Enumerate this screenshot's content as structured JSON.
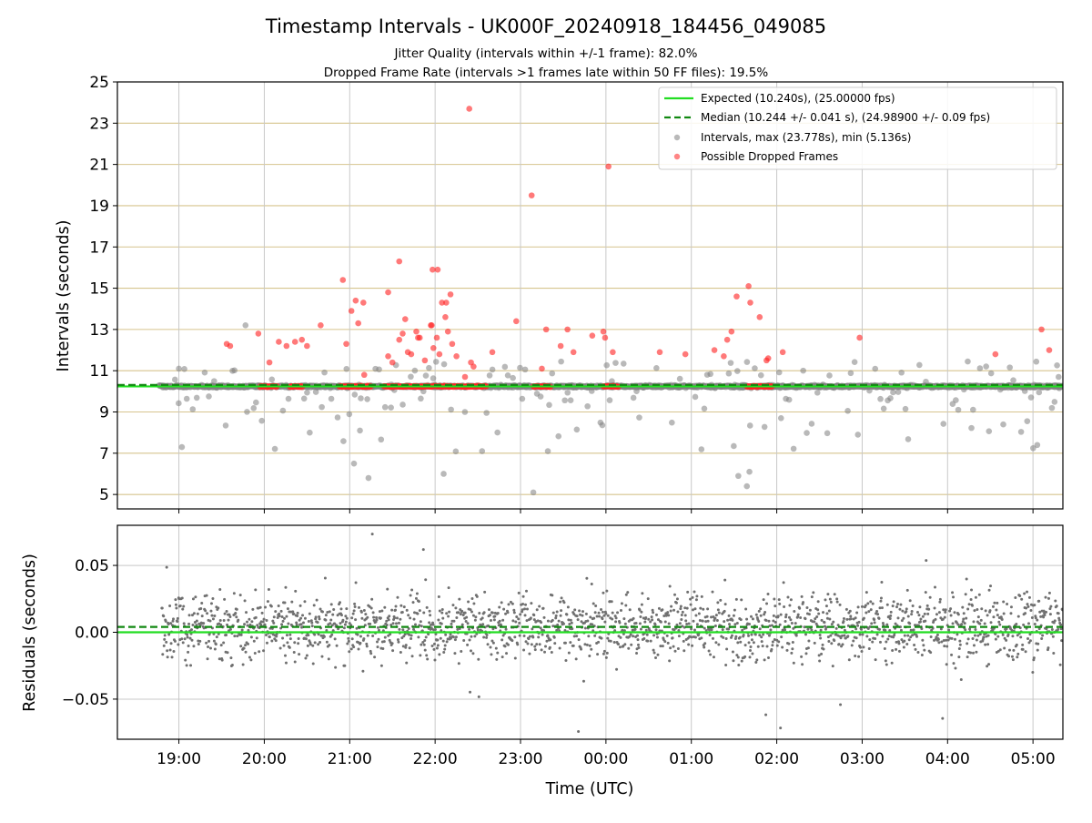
{
  "chart_data": [
    {
      "type": "scatter",
      "title": "Timestamp Intervals - UK000F_20240918_184456_049085",
      "subtitle_lines": [
        "Jitter Quality (intervals within +/-1 frame): 82.0%",
        "Dropped Frame Rate (intervals >1 frames late within 50 FF files): 19.5%"
      ],
      "xlabel": "",
      "ylabel": "Intervals (seconds)",
      "ylim": [
        4.3,
        25
      ],
      "yticks": [
        5,
        7,
        9,
        11,
        13,
        15,
        17,
        19,
        21,
        23,
        25
      ],
      "xlim_hours_utc": [
        18.28,
        29.35
      ],
      "xticks_hours": [
        19,
        20,
        21,
        22,
        23,
        24,
        25,
        26,
        27,
        28,
        29
      ],
      "xtick_labels": [
        "19:00",
        "20:00",
        "21:00",
        "22:00",
        "23:00",
        "00:00",
        "01:00",
        "02:00",
        "03:00",
        "04:00",
        "05:00"
      ],
      "grid": true,
      "legend_position": "top-right",
      "reference_lines": {
        "expected": {
          "value": 10.24,
          "label": "Expected (10.240s), (25.00000 fps)",
          "color": "#22dd22",
          "style": "solid"
        },
        "median": {
          "value": 10.244,
          "label": "Median (10.244 +/- 0.041 s), (24.98900 +/- 0.09 fps)",
          "color": "#118811",
          "style": "dashed"
        }
      },
      "series": [
        {
          "name": "Intervals, max (23.778s), min (5.136s)",
          "color": "#808080",
          "note": "about 2000 intervals, tightly clustered near 10.24 s from 18:46 to 05:15 UTC, with scattered outliers between about 5.1 and 13.2 s"
        },
        {
          "name": "Possible Dropped Frames",
          "color": "#ff2020",
          "points": [
            [
              19.56,
              12.3
            ],
            [
              19.6,
              12.2
            ],
            [
              19.93,
              12.8
            ],
            [
              20.06,
              11.4
            ],
            [
              20.17,
              12.4
            ],
            [
              20.26,
              12.2
            ],
            [
              20.36,
              12.4
            ],
            [
              20.44,
              12.5
            ],
            [
              20.5,
              12.2
            ],
            [
              20.66,
              13.2
            ],
            [
              20.92,
              15.4
            ],
            [
              20.96,
              12.3
            ],
            [
              21.02,
              13.9
            ],
            [
              21.07,
              14.4
            ],
            [
              21.1,
              13.3
            ],
            [
              21.16,
              14.3
            ],
            [
              21.17,
              10.8
            ],
            [
              21.45,
              14.8
            ],
            [
              21.45,
              11.7
            ],
            [
              21.5,
              11.4
            ],
            [
              21.58,
              16.3
            ],
            [
              21.58,
              12.5
            ],
            [
              21.62,
              12.8
            ],
            [
              21.65,
              13.5
            ],
            [
              21.68,
              11.9
            ],
            [
              21.72,
              11.8
            ],
            [
              21.78,
              12.9
            ],
            [
              21.8,
              12.6
            ],
            [
              21.82,
              12.6
            ],
            [
              21.88,
              11.5
            ],
            [
              21.95,
              13.2
            ],
            [
              21.96,
              13.2
            ],
            [
              21.97,
              15.9
            ],
            [
              21.98,
              12.1
            ],
            [
              22.02,
              12.6
            ],
            [
              22.03,
              15.9
            ],
            [
              22.05,
              11.8
            ],
            [
              22.08,
              14.3
            ],
            [
              22.12,
              13.6
            ],
            [
              22.13,
              14.3
            ],
            [
              22.15,
              12.9
            ],
            [
              22.18,
              14.7
            ],
            [
              22.2,
              12.3
            ],
            [
              22.25,
              11.7
            ],
            [
              22.35,
              10.7
            ],
            [
              22.4,
              23.7
            ],
            [
              22.42,
              11.4
            ],
            [
              22.45,
              11.2
            ],
            [
              22.67,
              11.9
            ],
            [
              22.95,
              13.4
            ],
            [
              23.13,
              19.5
            ],
            [
              23.25,
              11.1
            ],
            [
              23.3,
              13.0
            ],
            [
              23.47,
              12.2
            ],
            [
              23.55,
              13.0
            ],
            [
              23.62,
              11.9
            ],
            [
              23.84,
              12.7
            ],
            [
              23.97,
              12.9
            ],
            [
              23.99,
              12.6
            ],
            [
              24.03,
              20.9
            ],
            [
              24.08,
              11.9
            ],
            [
              24.63,
              11.9
            ],
            [
              24.93,
              11.8
            ],
            [
              25.27,
              12.0
            ],
            [
              25.38,
              11.7
            ],
            [
              25.42,
              12.5
            ],
            [
              25.47,
              12.9
            ],
            [
              25.53,
              14.6
            ],
            [
              25.67,
              15.1
            ],
            [
              25.69,
              14.3
            ],
            [
              25.8,
              13.6
            ],
            [
              25.88,
              11.5
            ],
            [
              25.9,
              11.6
            ],
            [
              26.07,
              11.9
            ],
            [
              26.97,
              12.6
            ],
            [
              28.56,
              11.8
            ],
            [
              29.1,
              13.0
            ],
            [
              29.19,
              12.0
            ]
          ],
          "dense_runs_at_10_24": [
            [
              19.95,
              20.15
            ],
            [
              20.3,
              20.45
            ],
            [
              20.88,
              21.25
            ],
            [
              21.4,
              22.6
            ],
            [
              23.15,
              23.35
            ],
            [
              23.97,
              24.15
            ],
            [
              25.65,
              25.95
            ]
          ]
        }
      ]
    },
    {
      "type": "scatter",
      "title": "",
      "xlabel": "Time (UTC)",
      "ylabel": "Residuals (seconds)",
      "ylim": [
        -0.08,
        0.08
      ],
      "yticks": [
        -0.05,
        0.0,
        0.05
      ],
      "ytick_labels": [
        "−0.05",
        "0.00",
        "0.05"
      ],
      "xticks_hours": [
        19,
        20,
        21,
        22,
        23,
        24,
        25,
        26,
        27,
        28,
        29
      ],
      "xtick_labels": [
        "19:00",
        "20:00",
        "21:00",
        "22:00",
        "23:00",
        "00:00",
        "01:00",
        "02:00",
        "03:00",
        "04:00",
        "05:00"
      ],
      "grid": true,
      "reference_lines": {
        "zero": {
          "value": 0.0,
          "color": "#22dd22",
          "style": "solid"
        },
        "median_offset": {
          "value": 0.004,
          "color": "#118811",
          "style": "dashed"
        }
      },
      "series": [
        {
          "name": "",
          "color": "#707070",
          "note": "about 2000 residuals mostly within -0.04 to +0.06 s from 18:46 to 05:15 UTC, centred slightly above zero; outliers near -0.08 and +0.07"
        }
      ]
    }
  ]
}
